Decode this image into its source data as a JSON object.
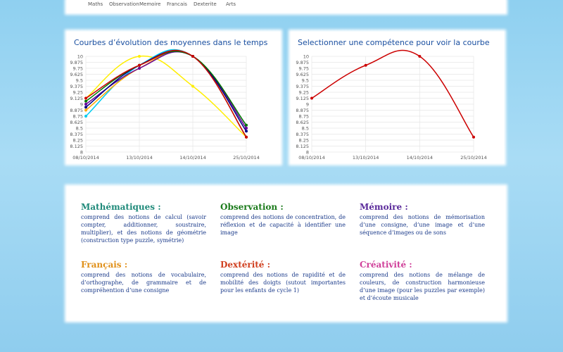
{
  "nav": [
    "Maths",
    "Observation",
    "Memoire",
    "Francais",
    "Dexterite",
    "Arts"
  ],
  "chart_data": [
    {
      "type": "line",
      "title": "Courbes d’évolution des moyennes dans le temps",
      "categories": [
        "08/10/2014",
        "13/10/2014",
        "14/10/2014",
        "25/10/2014"
      ],
      "ylim": [
        8,
        10
      ],
      "yticks": [
        8,
        8.125,
        8.25,
        8.375,
        8.5,
        8.625,
        8.75,
        8.875,
        9,
        9.125,
        9.25,
        9.375,
        9.5,
        9.625,
        9.75,
        9.875,
        10
      ],
      "grid": true,
      "series": [
        {
          "color": "#ffee00",
          "values": [
            9.125,
            10,
            9.375,
            8.3125
          ]
        },
        {
          "color": "#00ccee",
          "values": [
            8.75,
            9.8125,
            10,
            8.3125
          ]
        },
        {
          "color": "#ffaa00",
          "values": [
            8.875,
            9.75,
            10,
            8.3125
          ]
        },
        {
          "color": "#660099",
          "values": [
            9,
            9.75,
            10,
            8.5
          ]
        },
        {
          "color": "#000080",
          "values": [
            8.9375,
            9.8125,
            10,
            8.4375
          ]
        },
        {
          "color": "#007700",
          "values": [
            9.0625,
            9.8125,
            10,
            8.5625
          ]
        },
        {
          "color": "#cc0000",
          "values": [
            9.125,
            9.8125,
            10,
            8.3125
          ]
        }
      ]
    },
    {
      "type": "line",
      "title": "Selectionner une compétence pour voir la courbe",
      "categories": [
        "08/10/2014",
        "13/10/2014",
        "14/10/2014",
        "25/10/2014"
      ],
      "ylim": [
        8,
        10
      ],
      "yticks": [
        8,
        8.125,
        8.25,
        8.375,
        8.5,
        8.625,
        8.75,
        8.875,
        9,
        9.125,
        9.25,
        9.375,
        9.5,
        9.625,
        9.75,
        9.875,
        10
      ],
      "grid": true,
      "series": [
        {
          "color": "#cc0000",
          "values": [
            9.125,
            9.8125,
            10,
            8.3125
          ]
        }
      ]
    }
  ],
  "skills": [
    {
      "title": "Mathématiques :",
      "color": "#1f8a7a",
      "text": "comprend des notions de calcul (savoir compter, additionner, soustraire, multiplier), et des notions de géométrie (construction type puzzle, symétrie)"
    },
    {
      "title": "Observation :",
      "color": "#1a7a1a",
      "text": "comprend des notions de concentration, de réflexion et de capacité à identifier une image"
    },
    {
      "title": "Mémoire :",
      "color": "#5a2a9a",
      "text": "comprend des notions de mémorisation d’une consigne, d’une image et d’une séquence d’images ou de sons"
    },
    {
      "title": "Français :",
      "color": "#e0901a",
      "text": "comprend des notions de vocabulaire, d’orthographe, de grammaire et de compréhention d’une consigne"
    },
    {
      "title": "Dextérité :",
      "color": "#d04020",
      "text": "comprend des notions de rapidité et de mobilité des doigts (sutout importantes pour les enfants de cycle 1)"
    },
    {
      "title": "Créativité :",
      "color": "#d0409a",
      "text": "comprend des notions de mélange de couleurs, de construction harmonieuse d’une image (pour les puzzles par exemple) et d’écoute musicale"
    }
  ]
}
